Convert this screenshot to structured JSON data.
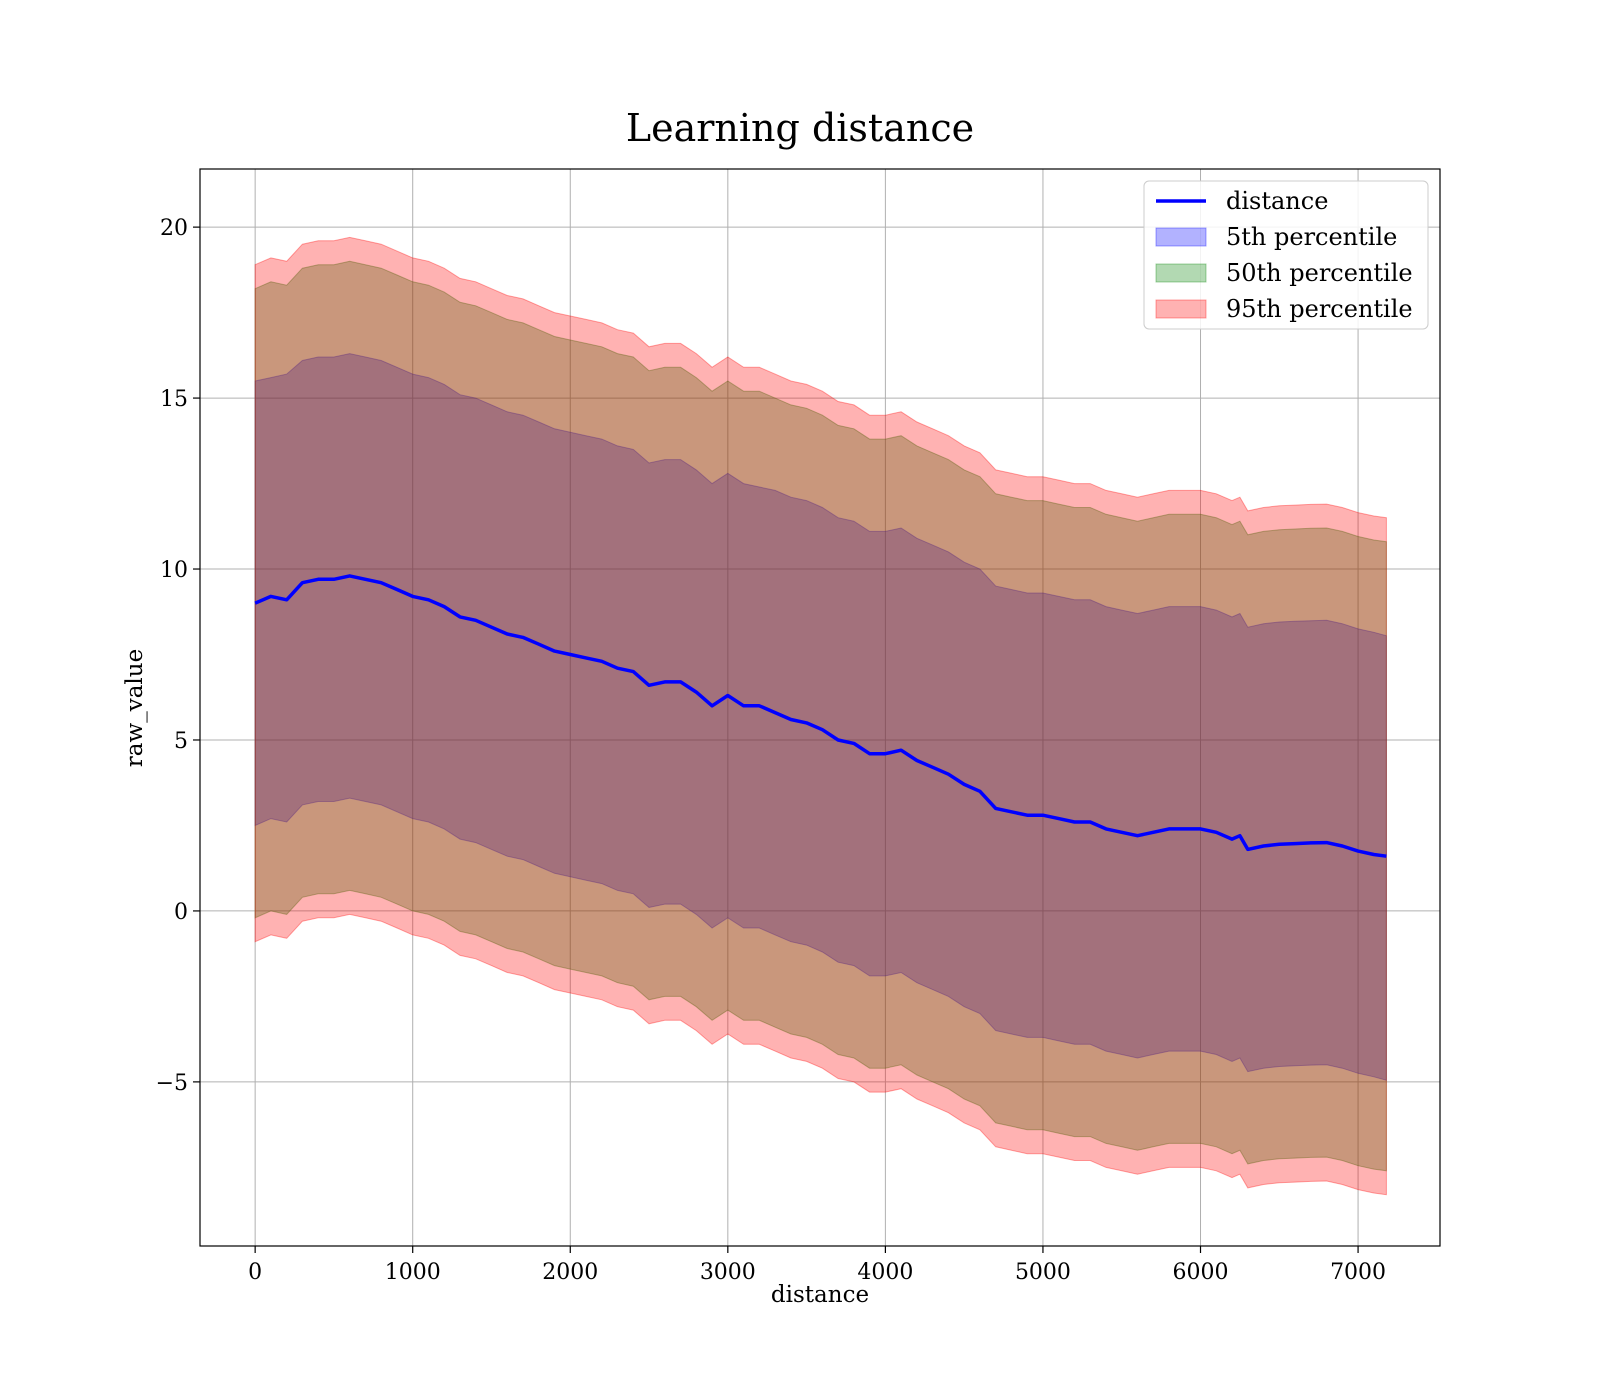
{
  "chart_data": {
    "type": "line",
    "title": "Learning distance",
    "xlabel": "distance",
    "ylabel": "raw_value",
    "xlim": [
      -350,
      7520
    ],
    "ylim": [
      -9.8,
      21.7
    ],
    "grid": true,
    "legend_position": "top-right",
    "x_ticks": [
      0,
      1000,
      2000,
      3000,
      4000,
      5000,
      6000,
      7000
    ],
    "x_tick_labels": [
      "0",
      "1000",
      "2000",
      "3000",
      "4000",
      "5000",
      "6000",
      "7000"
    ],
    "y_ticks": [
      -5,
      0,
      5,
      10,
      15,
      20
    ],
    "y_tick_labels": [
      "−5",
      "0",
      "5",
      "10",
      "15",
      "20"
    ],
    "x": [
      0,
      100,
      200,
      300,
      400,
      500,
      600,
      700,
      800,
      900,
      1000,
      1100,
      1200,
      1300,
      1400,
      1500,
      1600,
      1700,
      1800,
      1900,
      2000,
      2100,
      2200,
      2300,
      2400,
      2500,
      2600,
      2700,
      2800,
      2900,
      3000,
      3100,
      3200,
      3300,
      3400,
      3500,
      3600,
      3700,
      3800,
      3900,
      4000,
      4100,
      4200,
      4300,
      4400,
      4500,
      4600,
      4700,
      4800,
      4900,
      5000,
      5100,
      5200,
      5300,
      5400,
      5500,
      5600,
      5700,
      5800,
      5900,
      6000,
      6100,
      6200,
      6250,
      6300,
      6400,
      6500,
      6600,
      6700,
      6800,
      6900,
      7000,
      7100,
      7180
    ],
    "series": [
      {
        "name": "distance",
        "kind": "line",
        "color": "#0000ff",
        "values": [
          9.0,
          9.2,
          9.1,
          9.6,
          9.7,
          9.7,
          9.8,
          9.7,
          9.6,
          9.4,
          9.2,
          9.1,
          8.9,
          8.6,
          8.5,
          8.3,
          8.1,
          8.0,
          7.8,
          7.6,
          7.5,
          7.4,
          7.3,
          7.1,
          7.0,
          6.6,
          6.7,
          6.7,
          6.4,
          6.0,
          6.3,
          6.0,
          6.0,
          5.8,
          5.6,
          5.5,
          5.3,
          5.0,
          4.9,
          4.6,
          4.6,
          4.7,
          4.4,
          4.2,
          4.0,
          3.7,
          3.5,
          3.0,
          2.9,
          2.8,
          2.8,
          2.7,
          2.6,
          2.6,
          2.4,
          2.3,
          2.2,
          2.3,
          2.4,
          2.4,
          2.4,
          2.3,
          2.1,
          2.2,
          1.8,
          1.9,
          1.95,
          1.97,
          1.99,
          2.0,
          1.9,
          1.75,
          1.65,
          1.6
        ]
      },
      {
        "name": "5th percentile",
        "kind": "band",
        "color": "#0000ff",
        "upper": [
          15.5,
          15.6,
          15.7,
          16.1,
          16.2,
          16.2,
          16.3,
          16.2,
          16.1,
          15.9,
          15.7,
          15.6,
          15.4,
          15.1,
          15.0,
          14.8,
          14.6,
          14.5,
          14.3,
          14.1,
          14.0,
          13.9,
          13.8,
          13.6,
          13.5,
          13.1,
          13.2,
          13.2,
          12.9,
          12.5,
          12.8,
          12.5,
          12.4,
          12.3,
          12.1,
          12.0,
          11.8,
          11.5,
          11.4,
          11.1,
          11.1,
          11.2,
          10.9,
          10.7,
          10.5,
          10.2,
          10.0,
          9.5,
          9.4,
          9.3,
          9.3,
          9.2,
          9.1,
          9.1,
          8.9,
          8.8,
          8.7,
          8.8,
          8.9,
          8.9,
          8.9,
          8.8,
          8.6,
          8.7,
          8.3,
          8.4,
          8.45,
          8.47,
          8.49,
          8.5,
          8.4,
          8.25,
          8.15,
          8.05
        ],
        "lower": [
          2.5,
          2.7,
          2.6,
          3.1,
          3.2,
          3.2,
          3.3,
          3.2,
          3.1,
          2.9,
          2.7,
          2.6,
          2.4,
          2.1,
          2.0,
          1.8,
          1.6,
          1.5,
          1.3,
          1.1,
          1.0,
          0.9,
          0.8,
          0.6,
          0.5,
          0.1,
          0.2,
          0.2,
          -0.1,
          -0.5,
          -0.2,
          -0.5,
          -0.5,
          -0.7,
          -0.9,
          -1.0,
          -1.2,
          -1.5,
          -1.6,
          -1.9,
          -1.9,
          -1.8,
          -2.1,
          -2.3,
          -2.5,
          -2.8,
          -3.0,
          -3.5,
          -3.6,
          -3.7,
          -3.7,
          -3.8,
          -3.9,
          -3.9,
          -4.1,
          -4.2,
          -4.3,
          -4.2,
          -4.1,
          -4.1,
          -4.1,
          -4.2,
          -4.4,
          -4.3,
          -4.7,
          -4.6,
          -4.55,
          -4.53,
          -4.51,
          -4.5,
          -4.6,
          -4.75,
          -4.85,
          -4.95
        ]
      },
      {
        "name": "50th percentile",
        "kind": "band",
        "color": "#008000",
        "upper": [
          18.2,
          18.4,
          18.3,
          18.8,
          18.9,
          18.9,
          19.0,
          18.9,
          18.8,
          18.6,
          18.4,
          18.3,
          18.1,
          17.8,
          17.7,
          17.5,
          17.3,
          17.2,
          17.0,
          16.8,
          16.7,
          16.6,
          16.5,
          16.3,
          16.2,
          15.8,
          15.9,
          15.9,
          15.6,
          15.2,
          15.5,
          15.2,
          15.2,
          15.0,
          14.8,
          14.7,
          14.5,
          14.2,
          14.1,
          13.8,
          13.8,
          13.9,
          13.6,
          13.4,
          13.2,
          12.9,
          12.7,
          12.2,
          12.1,
          12.0,
          12.0,
          11.9,
          11.8,
          11.8,
          11.6,
          11.5,
          11.4,
          11.5,
          11.6,
          11.6,
          11.6,
          11.5,
          11.3,
          11.4,
          11.0,
          11.1,
          11.15,
          11.17,
          11.19,
          11.2,
          11.1,
          10.95,
          10.85,
          10.8
        ],
        "lower": [
          -0.2,
          0.0,
          -0.1,
          0.4,
          0.5,
          0.5,
          0.6,
          0.5,
          0.4,
          0.2,
          0.0,
          -0.1,
          -0.3,
          -0.6,
          -0.7,
          -0.9,
          -1.1,
          -1.2,
          -1.4,
          -1.6,
          -1.7,
          -1.8,
          -1.9,
          -2.1,
          -2.2,
          -2.6,
          -2.5,
          -2.5,
          -2.8,
          -3.2,
          -2.9,
          -3.2,
          -3.2,
          -3.4,
          -3.6,
          -3.7,
          -3.9,
          -4.2,
          -4.3,
          -4.6,
          -4.6,
          -4.5,
          -4.8,
          -5.0,
          -5.2,
          -5.5,
          -5.7,
          -6.2,
          -6.3,
          -6.4,
          -6.4,
          -6.5,
          -6.6,
          -6.6,
          -6.8,
          -6.9,
          -7.0,
          -6.9,
          -6.8,
          -6.8,
          -6.8,
          -6.9,
          -7.1,
          -7.0,
          -7.4,
          -7.3,
          -7.25,
          -7.23,
          -7.21,
          -7.2,
          -7.3,
          -7.45,
          -7.55,
          -7.6
        ]
      },
      {
        "name": "95th percentile",
        "kind": "band",
        "color": "#ff0000",
        "upper": [
          18.9,
          19.1,
          19.0,
          19.5,
          19.6,
          19.6,
          19.7,
          19.6,
          19.5,
          19.3,
          19.1,
          19.0,
          18.8,
          18.5,
          18.4,
          18.2,
          18.0,
          17.9,
          17.7,
          17.5,
          17.4,
          17.3,
          17.2,
          17.0,
          16.9,
          16.5,
          16.6,
          16.6,
          16.3,
          15.9,
          16.2,
          15.9,
          15.9,
          15.7,
          15.5,
          15.4,
          15.2,
          14.9,
          14.8,
          14.5,
          14.5,
          14.6,
          14.3,
          14.1,
          13.9,
          13.6,
          13.4,
          12.9,
          12.8,
          12.7,
          12.7,
          12.6,
          12.5,
          12.5,
          12.3,
          12.2,
          12.1,
          12.2,
          12.3,
          12.3,
          12.3,
          12.2,
          12.0,
          12.1,
          11.7,
          11.8,
          11.85,
          11.87,
          11.89,
          11.9,
          11.8,
          11.65,
          11.55,
          11.5
        ],
        "lower": [
          -0.9,
          -0.7,
          -0.8,
          -0.3,
          -0.2,
          -0.2,
          -0.1,
          -0.2,
          -0.3,
          -0.5,
          -0.7,
          -0.8,
          -1.0,
          -1.3,
          -1.4,
          -1.6,
          -1.8,
          -1.9,
          -2.1,
          -2.3,
          -2.4,
          -2.5,
          -2.6,
          -2.8,
          -2.9,
          -3.3,
          -3.2,
          -3.2,
          -3.5,
          -3.9,
          -3.6,
          -3.9,
          -3.9,
          -4.1,
          -4.3,
          -4.4,
          -4.6,
          -4.9,
          -5.0,
          -5.3,
          -5.3,
          -5.2,
          -5.5,
          -5.7,
          -5.9,
          -6.2,
          -6.4,
          -6.9,
          -7.0,
          -7.1,
          -7.1,
          -7.2,
          -7.3,
          -7.3,
          -7.5,
          -7.6,
          -7.7,
          -7.6,
          -7.5,
          -7.5,
          -7.5,
          -7.6,
          -7.8,
          -7.7,
          -8.1,
          -8.0,
          -7.95,
          -7.93,
          -7.91,
          -7.9,
          -8.0,
          -8.15,
          -8.25,
          -8.3
        ]
      }
    ]
  }
}
